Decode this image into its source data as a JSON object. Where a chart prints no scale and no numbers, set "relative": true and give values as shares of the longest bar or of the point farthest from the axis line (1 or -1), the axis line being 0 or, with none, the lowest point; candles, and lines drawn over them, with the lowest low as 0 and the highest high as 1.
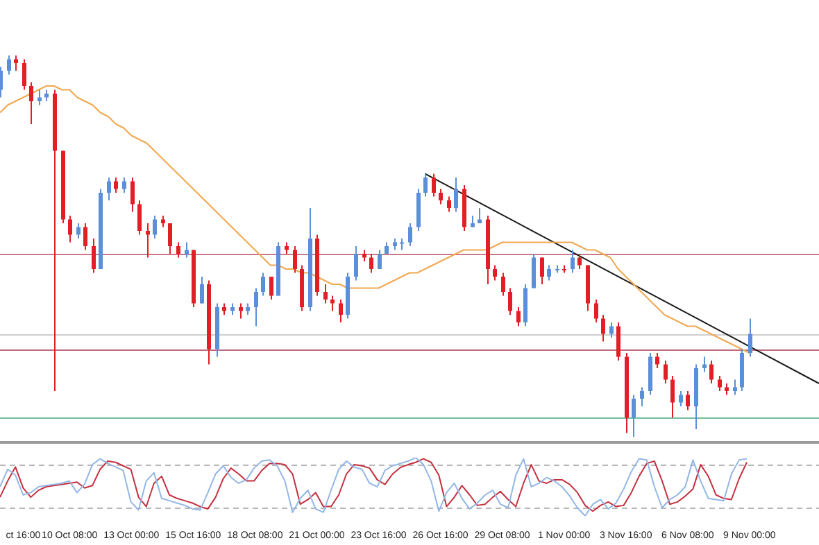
{
  "chart_data": [
    {
      "type": "candlestick",
      "relative": true,
      "legend": false,
      "categories": [
        null,
        null,
        null,
        "ct 16:00",
        null,
        null,
        null,
        null,
        null,
        "10 Oct 08:00",
        null,
        null,
        null,
        null,
        null,
        null,
        null,
        "13 Oct 00:00",
        null,
        null,
        null,
        null,
        null,
        null,
        null,
        "15 Oct 16:00",
        null,
        null,
        null,
        null,
        null,
        null,
        null,
        "18 Oct 08:00",
        null,
        null,
        null,
        null,
        null,
        null,
        null,
        "21 Oct 00:00",
        null,
        null,
        null,
        null,
        null,
        null,
        null,
        "23 Oct 16:00",
        null,
        null,
        null,
        null,
        null,
        null,
        null,
        "26 Oct 16:00",
        null,
        null,
        null,
        null,
        null,
        null,
        null,
        "29 Oct 08:00",
        null,
        null,
        null,
        null,
        null,
        null,
        null,
        "1 Nov 00:00",
        null,
        null,
        null,
        null,
        null,
        null,
        null,
        "3 Nov 16:00",
        null,
        null,
        null,
        null,
        null,
        null,
        null,
        "6 Nov 08:00",
        null,
        null,
        null,
        null,
        null,
        null,
        null,
        "9 Nov 00:00",
        null,
        null,
        null,
        null,
        null,
        null,
        null,
        null,
        null
      ],
      "colors": [
        "#5b8fd9",
        "#5b8fd9",
        "#e21f26",
        "#e21f26",
        "#e21f26",
        "#5b8fd9",
        "#5b8fd9",
        "#e21f26",
        "#e21f26",
        "#e21f26",
        "#5b8fd9",
        "#e21f26",
        "#e21f26",
        "#5b8fd9",
        "#5b8fd9",
        "#e21f26",
        "#5b8fd9",
        "#e21f26",
        "#e21f26",
        "#e21f26",
        "#5b8fd9",
        "#e21f26",
        "#e21f26",
        "#e21f26",
        "#5b8fd9",
        "#e21f26",
        "#5b8fd9",
        "#e21f26",
        "#5b8fd9",
        "#e21f26",
        "#5b8fd9",
        "#e21f26",
        "#5b8fd9",
        "#5b8fd9",
        "#5b8fd9",
        "#e21f26",
        "#5b8fd9",
        "#e21f26",
        "#e21f26",
        "#e21f26",
        "#5b8fd9",
        "#e21f26",
        "#e21f26",
        "#e21f26",
        "#e21f26",
        "#5b8fd9",
        "#5b8fd9",
        "#e21f26",
        "#e21f26",
        "#5b8fd9",
        "#5b8fd9",
        "#5b8fd9",
        "#5b8fd9",
        "#5b8fd9",
        "#5b8fd9",
        "#5b8fd9",
        "#e21f26",
        "#e21f26",
        "#e21f26",
        "#5b8fd9",
        "#e21f26",
        "#5b8fd9",
        "#5b8fd9",
        "#e21f26",
        "#e21f26",
        "#e21f26",
        "#e21f26",
        "#e21f26",
        "#5b8fd9",
        "#5b8fd9",
        "#e21f26",
        "#5b8fd9",
        "#5b8fd9",
        "#e21f26",
        "#5b8fd9",
        "#e21f26",
        "#e21f26",
        "#e21f26",
        "#e21f26",
        "#5b8fd9",
        "#e21f26",
        "#e21f26",
        "#5b8fd9",
        "#5b8fd9",
        "#5b8fd9",
        "#e21f26",
        "#e21f26",
        "#e21f26",
        "#5b8fd9",
        "#e21f26",
        "#5b8fd9",
        "#5b8fd9",
        "#e21f26",
        "#e21f26",
        "#e21f26",
        "#5b8fd9",
        "#5b8fd9",
        "#5b8fd9",
        null,
        null,
        null,
        null,
        null,
        null,
        null,
        null,
        null
      ],
      "ohlc": [
        [
          0.91,
          0.97,
          0.89,
          0.96
        ],
        [
          0.96,
          1.0,
          0.95,
          0.99
        ],
        [
          0.99,
          1.0,
          0.96,
          0.98
        ],
        [
          0.98,
          0.99,
          0.91,
          0.92
        ],
        [
          0.92,
          0.93,
          0.82,
          0.88
        ],
        [
          0.88,
          0.91,
          0.87,
          0.89
        ],
        [
          0.89,
          0.91,
          0.88,
          0.9
        ],
        [
          0.9,
          0.91,
          0.12,
          0.75
        ],
        [
          0.75,
          0.75,
          0.56,
          0.57
        ],
        [
          0.57,
          0.58,
          0.51,
          0.53
        ],
        [
          0.53,
          0.56,
          0.52,
          0.55
        ],
        [
          0.55,
          0.56,
          0.49,
          0.5
        ],
        [
          0.5,
          0.52,
          0.43,
          0.44
        ],
        [
          0.44,
          0.65,
          0.44,
          0.64
        ],
        [
          0.64,
          0.68,
          0.62,
          0.67
        ],
        [
          0.67,
          0.68,
          0.64,
          0.65
        ],
        [
          0.65,
          0.68,
          0.64,
          0.67
        ],
        [
          0.67,
          0.68,
          0.59,
          0.61
        ],
        [
          0.61,
          0.62,
          0.53,
          0.54
        ],
        [
          0.54,
          0.56,
          0.47,
          0.53
        ],
        [
          0.53,
          0.58,
          0.52,
          0.57
        ],
        [
          0.57,
          0.58,
          0.55,
          0.56
        ],
        [
          0.56,
          0.56,
          0.48,
          0.5
        ],
        [
          0.5,
          0.51,
          0.47,
          0.48
        ],
        [
          0.48,
          0.51,
          0.47,
          0.49
        ],
        [
          0.49,
          0.49,
          0.34,
          0.35
        ],
        [
          0.35,
          0.42,
          0.35,
          0.4
        ],
        [
          0.4,
          0.41,
          0.19,
          0.23
        ],
        [
          0.23,
          0.35,
          0.21,
          0.34
        ],
        [
          0.34,
          0.35,
          0.32,
          0.33
        ],
        [
          0.33,
          0.35,
          0.32,
          0.34
        ],
        [
          0.34,
          0.35,
          0.31,
          0.33
        ],
        [
          0.33,
          0.35,
          0.32,
          0.34
        ],
        [
          0.34,
          0.39,
          0.29,
          0.38
        ],
        [
          0.38,
          0.43,
          0.37,
          0.42
        ],
        [
          0.42,
          0.42,
          0.36,
          0.37
        ],
        [
          0.37,
          0.51,
          0.37,
          0.5
        ],
        [
          0.5,
          0.51,
          0.48,
          0.49
        ],
        [
          0.49,
          0.5,
          0.43,
          0.44
        ],
        [
          0.44,
          0.45,
          0.33,
          0.34
        ],
        [
          0.34,
          0.6,
          0.33,
          0.52
        ],
        [
          0.52,
          0.53,
          0.37,
          0.38
        ],
        [
          0.38,
          0.4,
          0.35,
          0.36
        ],
        [
          0.36,
          0.37,
          0.33,
          0.35
        ],
        [
          0.35,
          0.36,
          0.3,
          0.32
        ],
        [
          0.32,
          0.43,
          0.31,
          0.42
        ],
        [
          0.42,
          0.5,
          0.41,
          0.48
        ],
        [
          0.48,
          0.49,
          0.46,
          0.47
        ],
        [
          0.47,
          0.48,
          0.43,
          0.44
        ],
        [
          0.44,
          0.49,
          0.44,
          0.48
        ],
        [
          0.48,
          0.51,
          0.48,
          0.5
        ],
        [
          0.5,
          0.52,
          0.49,
          0.51
        ],
        [
          0.51,
          0.52,
          0.49,
          0.51
        ],
        [
          0.51,
          0.56,
          0.5,
          0.55
        ],
        [
          0.55,
          0.65,
          0.54,
          0.64
        ],
        [
          0.64,
          0.69,
          0.63,
          0.68
        ],
        [
          0.68,
          0.69,
          0.63,
          0.64
        ],
        [
          0.64,
          0.65,
          0.61,
          0.62
        ],
        [
          0.62,
          0.63,
          0.59,
          0.6
        ],
        [
          0.6,
          0.68,
          0.59,
          0.65
        ],
        [
          0.65,
          0.66,
          0.54,
          0.55
        ],
        [
          0.55,
          0.58,
          0.55,
          0.56
        ],
        [
          0.56,
          0.6,
          0.56,
          0.57
        ],
        [
          0.57,
          0.58,
          0.4,
          0.44
        ],
        [
          0.44,
          0.45,
          0.41,
          0.42
        ],
        [
          0.42,
          0.43,
          0.37,
          0.38
        ],
        [
          0.38,
          0.39,
          0.32,
          0.33
        ],
        [
          0.33,
          0.34,
          0.29,
          0.3
        ],
        [
          0.3,
          0.4,
          0.29,
          0.39
        ],
        [
          0.39,
          0.48,
          0.39,
          0.47
        ],
        [
          0.47,
          0.47,
          0.4,
          0.42
        ],
        [
          0.42,
          0.45,
          0.41,
          0.44
        ],
        [
          0.44,
          0.45,
          0.43,
          0.44
        ],
        [
          0.44,
          0.45,
          0.43,
          0.44
        ],
        [
          0.44,
          0.49,
          0.43,
          0.47
        ],
        [
          0.47,
          0.48,
          0.44,
          0.45
        ],
        [
          0.45,
          0.45,
          0.33,
          0.35
        ],
        [
          0.35,
          0.36,
          0.3,
          0.31
        ],
        [
          0.31,
          0.32,
          0.25,
          0.27
        ],
        [
          0.27,
          0.3,
          0.26,
          0.29
        ],
        [
          0.29,
          0.3,
          0.2,
          0.21
        ],
        [
          0.21,
          0.22,
          0.01,
          0.05
        ],
        [
          0.05,
          0.11,
          0.0,
          0.1
        ],
        [
          0.1,
          0.13,
          0.08,
          0.12
        ],
        [
          0.12,
          0.22,
          0.11,
          0.21
        ],
        [
          0.21,
          0.22,
          0.18,
          0.19
        ],
        [
          0.19,
          0.2,
          0.14,
          0.15
        ],
        [
          0.15,
          0.16,
          0.05,
          0.09
        ],
        [
          0.09,
          0.12,
          0.08,
          0.11
        ],
        [
          0.11,
          0.12,
          0.07,
          0.08
        ],
        [
          0.08,
          0.19,
          0.02,
          0.18
        ],
        [
          0.18,
          0.21,
          0.17,
          0.19
        ],
        [
          0.19,
          0.2,
          0.14,
          0.15
        ],
        [
          0.15,
          0.16,
          0.12,
          0.13
        ],
        [
          0.13,
          0.14,
          0.11,
          0.12
        ],
        [
          0.12,
          0.15,
          0.11,
          0.13
        ],
        [
          0.13,
          0.23,
          0.12,
          0.22
        ],
        [
          0.22,
          0.31,
          0.21,
          0.27
        ],
        null,
        null,
        null,
        null,
        null,
        null,
        null,
        null,
        null
      ],
      "series": [
        {
          "type": "line",
          "color": "#f0a850",
          "values": [
            0.85,
            0.87,
            0.88,
            0.89,
            0.9,
            0.91,
            0.92,
            0.92,
            0.91,
            0.91,
            0.89,
            0.88,
            0.87,
            0.85,
            0.84,
            0.82,
            0.81,
            0.79,
            0.78,
            0.77,
            0.75,
            0.73,
            0.71,
            0.69,
            0.67,
            0.65,
            0.63,
            0.61,
            0.59,
            0.57,
            0.55,
            0.53,
            0.51,
            0.49,
            0.47,
            0.45,
            0.45,
            0.44,
            0.44,
            0.43,
            0.43,
            0.42,
            0.41,
            0.4,
            0.4,
            0.39,
            0.39,
            0.39,
            0.39,
            0.39,
            0.4,
            0.41,
            0.42,
            0.43,
            0.43,
            0.44,
            0.45,
            0.46,
            0.47,
            0.48,
            0.49,
            0.49,
            0.49,
            0.49,
            0.5,
            0.51,
            0.51,
            0.51,
            0.51,
            0.51,
            0.51,
            0.51,
            0.51,
            0.51,
            0.51,
            0.5,
            0.49,
            0.49,
            0.48,
            0.47,
            0.44,
            0.42,
            0.4,
            0.38,
            0.36,
            0.34,
            0.32,
            0.31,
            0.3,
            0.29,
            0.29,
            0.28,
            0.27,
            0.26,
            0.25,
            0.24,
            0.23,
            0.22,
            null,
            null,
            null,
            null,
            null,
            null,
            null,
            null,
            null
          ]
        },
        {
          "type": "line",
          "color": "#1a1a1a",
          "values": [
            null,
            null,
            null,
            null,
            null,
            null,
            null,
            null,
            null,
            null,
            null,
            null,
            null,
            null,
            null,
            null,
            null,
            null,
            null,
            null,
            null,
            null,
            null,
            null,
            null,
            null,
            null,
            null,
            null,
            null,
            null,
            null,
            null,
            null,
            null,
            null,
            null,
            null,
            null,
            null,
            null,
            null,
            null,
            null,
            null,
            null,
            null,
            null,
            null,
            null,
            null,
            null,
            null,
            null,
            null,
            0.69,
            null,
            null,
            null,
            null,
            null,
            null,
            null,
            null,
            null,
            null,
            null,
            null,
            null,
            null,
            null,
            null,
            null,
            null,
            null,
            null,
            null,
            null,
            null,
            null,
            null,
            null,
            null,
            null,
            null,
            null,
            null,
            null,
            null,
            null,
            null,
            null,
            null,
            null,
            null,
            null,
            null,
            null,
            null,
            null,
            null,
            null,
            null,
            null,
            null,
            null,
            0.14
          ]
        }
      ],
      "ref_lines": [
        {
          "axis": "y",
          "value": 0.48,
          "color": "#c97a88"
        },
        {
          "axis": "y",
          "value": 0.27,
          "color": "#cfcfcf"
        },
        {
          "axis": "y",
          "value": 0.23,
          "color": "#c06a7a"
        },
        {
          "axis": "y",
          "value": 0.05,
          "color": "#6fbf9c"
        }
      ]
    },
    {
      "type": "line",
      "relative": true,
      "legend": false,
      "categories": [
        null,
        null,
        null,
        null,
        null,
        null,
        null,
        null,
        null,
        null,
        null,
        null,
        null,
        null,
        null,
        null,
        null,
        null,
        null,
        null,
        null,
        null,
        null,
        null,
        null,
        null,
        null,
        null,
        null,
        null,
        null,
        null,
        null,
        null,
        null,
        null,
        null,
        null,
        null,
        null,
        null,
        null,
        null,
        null,
        null,
        null,
        null,
        null,
        null,
        null,
        null,
        null,
        null,
        null,
        null,
        null,
        null,
        null,
        null,
        null,
        null,
        null,
        null,
        null,
        null,
        null,
        null,
        null,
        null,
        null,
        null,
        null,
        null,
        null,
        null,
        null,
        null,
        null,
        null,
        null,
        null,
        null,
        null,
        null,
        null,
        null,
        null,
        null,
        null,
        null,
        null,
        null,
        null,
        null,
        null,
        null,
        null,
        null
      ],
      "series": [
        {
          "color": "#93b6e6",
          "values": [
            0.5,
            0.8,
            0.7,
            0.36,
            0.4,
            0.5,
            0.52,
            0.54,
            0.56,
            0.6,
            0.4,
            0.55,
            0.88,
            0.98,
            0.9,
            0.84,
            0.78,
            0.24,
            0.1,
            0.6,
            0.74,
            0.3,
            0.26,
            0.22,
            0.18,
            0.12,
            0.1,
            0.4,
            0.72,
            0.86,
            0.66,
            0.56,
            0.62,
            0.82,
            0.94,
            0.96,
            0.86,
            0.6,
            0.06,
            0.3,
            0.44,
            0.12,
            0.06,
            0.44,
            0.8,
            0.94,
            0.84,
            0.8,
            0.56,
            0.5,
            0.78,
            0.86,
            0.9,
            0.94,
            1.0,
            0.88,
            0.6,
            0.08,
            0.4,
            0.56,
            0.3,
            0.12,
            0.22,
            0.36,
            0.44,
            0.2,
            0.14,
            0.7,
            0.98,
            0.5,
            0.56,
            0.66,
            0.6,
            0.5,
            0.34,
            0.14,
            0.0,
            0.2,
            0.28,
            0.12,
            0.22,
            0.46,
            0.76,
            0.98,
            0.96,
            0.5,
            0.14,
            0.28,
            0.36,
            0.5,
            0.96,
            0.6,
            0.3,
            0.28,
            0.26,
            0.72,
            0.96,
            0.98
          ]
        },
        {
          "color": "#c4303e",
          "values": [
            0.32,
            0.6,
            0.84,
            0.48,
            0.32,
            0.44,
            0.5,
            0.52,
            0.54,
            0.56,
            0.58,
            0.48,
            0.52,
            0.8,
            0.94,
            0.92,
            0.86,
            0.8,
            0.32,
            0.16,
            0.56,
            0.68,
            0.36,
            0.3,
            0.26,
            0.22,
            0.16,
            0.12,
            0.32,
            0.64,
            0.82,
            0.72,
            0.6,
            0.6,
            0.78,
            0.9,
            0.9,
            0.88,
            0.72,
            0.2,
            0.28,
            0.4,
            0.16,
            0.16,
            0.36,
            0.72,
            0.88,
            0.86,
            0.82,
            0.62,
            0.54,
            0.72,
            0.83,
            0.88,
            0.92,
            0.98,
            0.92,
            0.7,
            0.16,
            0.32,
            0.52,
            0.36,
            0.18,
            0.2,
            0.32,
            0.42,
            0.28,
            0.16,
            0.56,
            0.88,
            0.6,
            0.56,
            0.62,
            0.62,
            0.54,
            0.4,
            0.18,
            0.08,
            0.18,
            0.24,
            0.16,
            0.18,
            0.4,
            0.68,
            0.9,
            0.94,
            0.6,
            0.2,
            0.24,
            0.34,
            0.46,
            0.88,
            0.68,
            0.36,
            0.3,
            0.28,
            0.64,
            0.92
          ]
        }
      ],
      "ref_lines": [
        {
          "axis": "y",
          "value": 0.88,
          "color": "#b8b8b8",
          "line_style": "dashed"
        },
        {
          "axis": "y",
          "value": 0.14,
          "color": "#b8b8b8",
          "line_style": "dashed"
        }
      ]
    }
  ]
}
